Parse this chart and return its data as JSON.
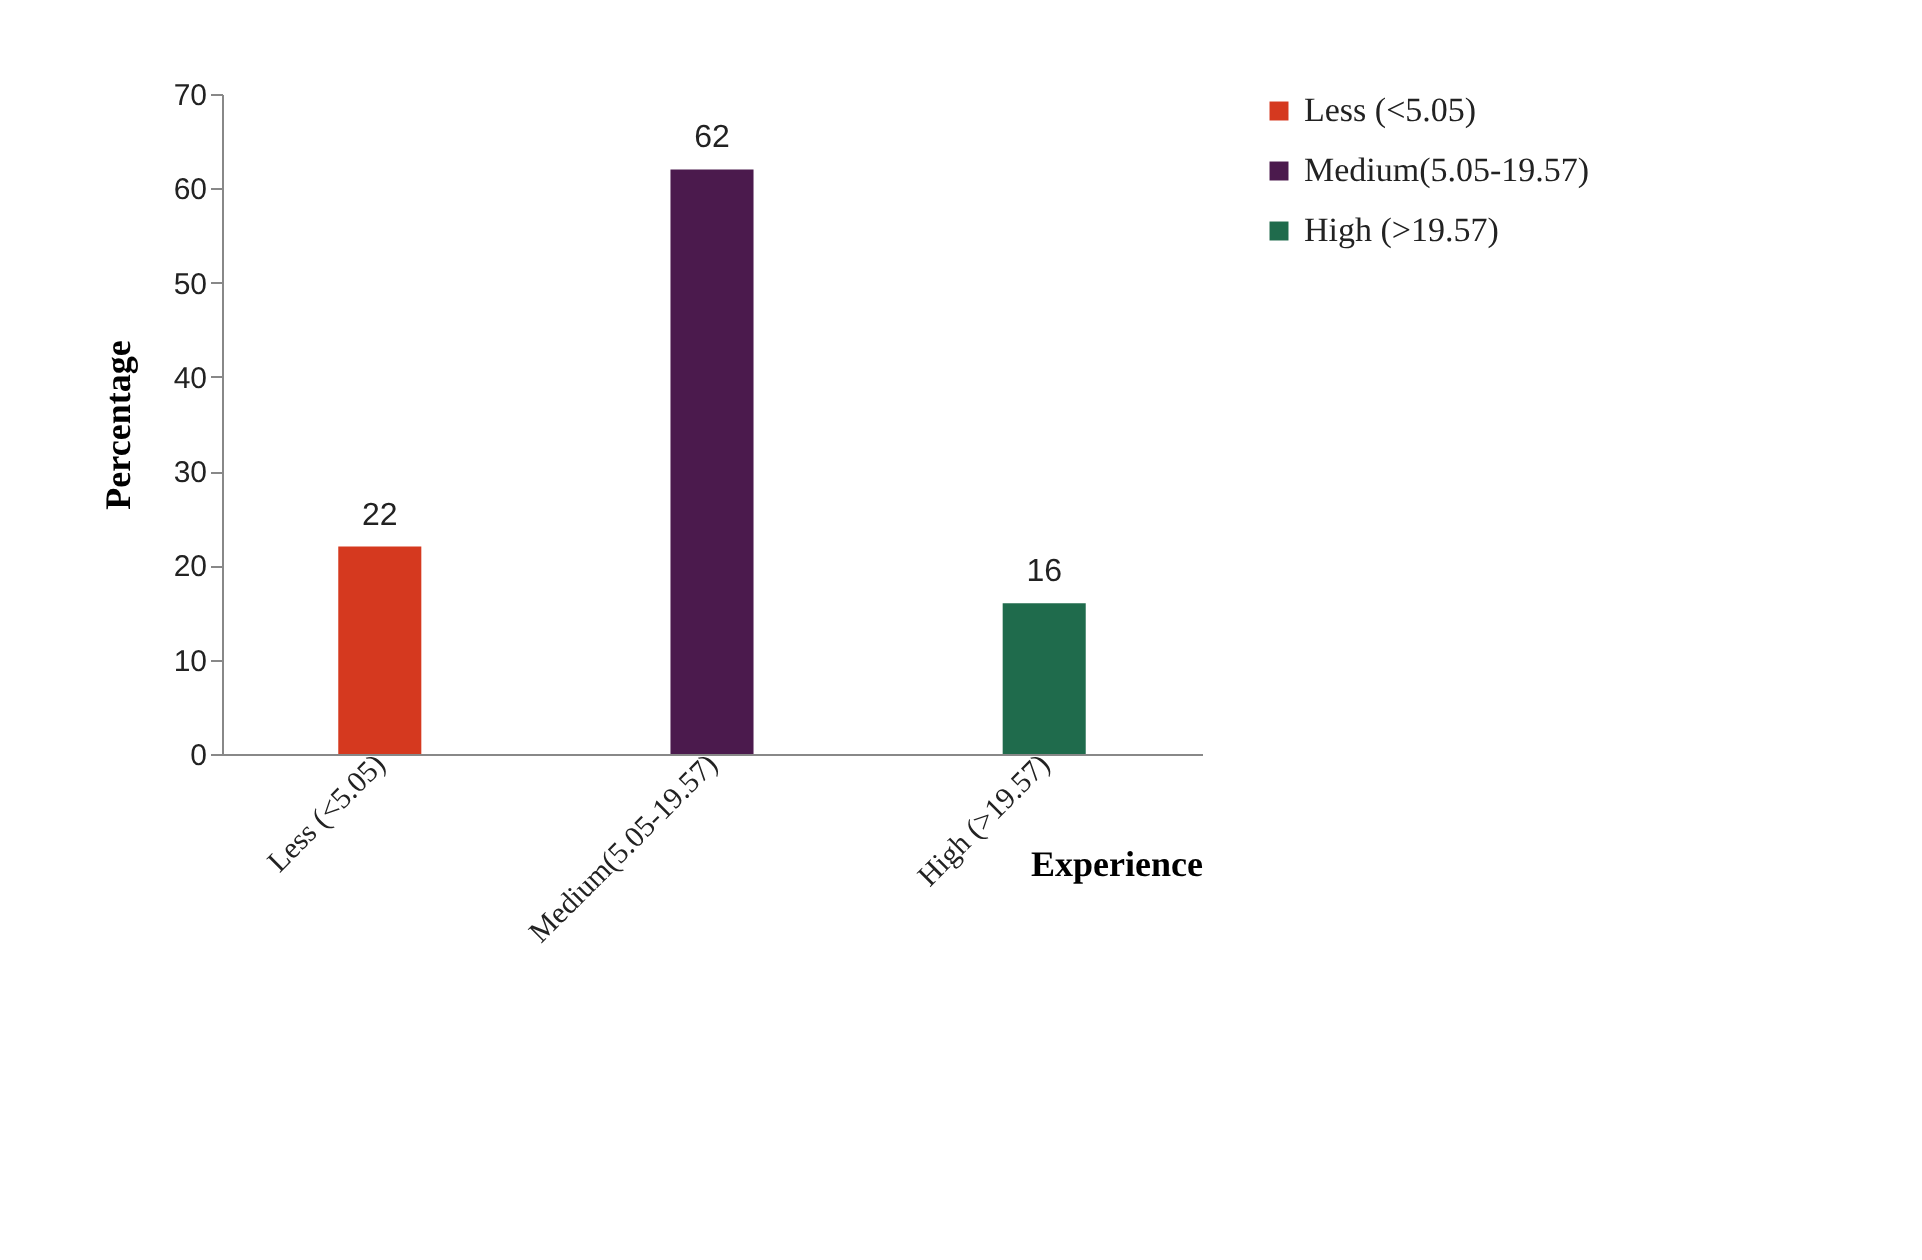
{
  "chart_data": {
    "type": "bar",
    "xlabel": "Experience",
    "ylabel": "Percentage",
    "categories": [
      "Less     (<5.05)",
      "Medium(5.05-19.57)",
      "High (>19.57)"
    ],
    "series": [
      {
        "name": "Less     (<5.05)",
        "color": "#d5391f",
        "values": [
          22,
          null,
          null
        ]
      },
      {
        "name": "Medium(5.05-19.57)",
        "color": "#4b1a4d",
        "values": [
          null,
          62,
          null
        ]
      },
      {
        "name": "High (>19.57)",
        "color": "#1f6b4c",
        "values": [
          null,
          null,
          16
        ]
      }
    ],
    "ylim": [
      0,
      70
    ],
    "yticks": [
      0,
      10,
      20,
      30,
      40,
      50,
      60,
      70
    ],
    "grid": false,
    "legend": "right",
    "data_labels": true
  }
}
